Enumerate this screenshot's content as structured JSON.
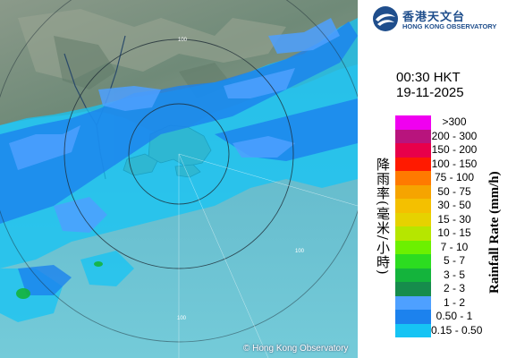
{
  "radar": {
    "copyright": "© Hong Kong Observatory",
    "ring_label": "100"
  },
  "header": {
    "logo_cn": "香港天文台",
    "logo_en": "HONG KONG OBSERVATORY",
    "time": "00:30 HKT",
    "date": "19-11-2025"
  },
  "legend": {
    "title_cn": "降雨率(毫米/小時)",
    "title_en": "Rainfall Rate (mm/h)",
    "items": [
      {
        "label": ">300",
        "color": "#f000f0"
      },
      {
        "label": "200 - 300",
        "color": "#b8147d"
      },
      {
        "label": "150 - 200",
        "color": "#e8004a"
      },
      {
        "label": "100 - 150",
        "color": "#ff1a00"
      },
      {
        "label": "75 - 100",
        "color": "#ff7a00"
      },
      {
        "label": "50 - 75",
        "color": "#f6a400"
      },
      {
        "label": "30 - 50",
        "color": "#f4c000"
      },
      {
        "label": "15 - 30",
        "color": "#e6d200"
      },
      {
        "label": "10 - 15",
        "color": "#b6e600"
      },
      {
        "label": "7 - 10",
        "color": "#6cf000"
      },
      {
        "label": "5 - 7",
        "color": "#2cdc20"
      },
      {
        "label": "3 - 5",
        "color": "#14b43c"
      },
      {
        "label": "2 - 3",
        "color": "#168c4c"
      },
      {
        "label": "1 - 2",
        "color": "#4ea0ff"
      },
      {
        "label": "0.50 - 1",
        "color": "#1c82ee"
      },
      {
        "label": "0.15 - 0.50",
        "color": "#16c4f4"
      }
    ]
  }
}
